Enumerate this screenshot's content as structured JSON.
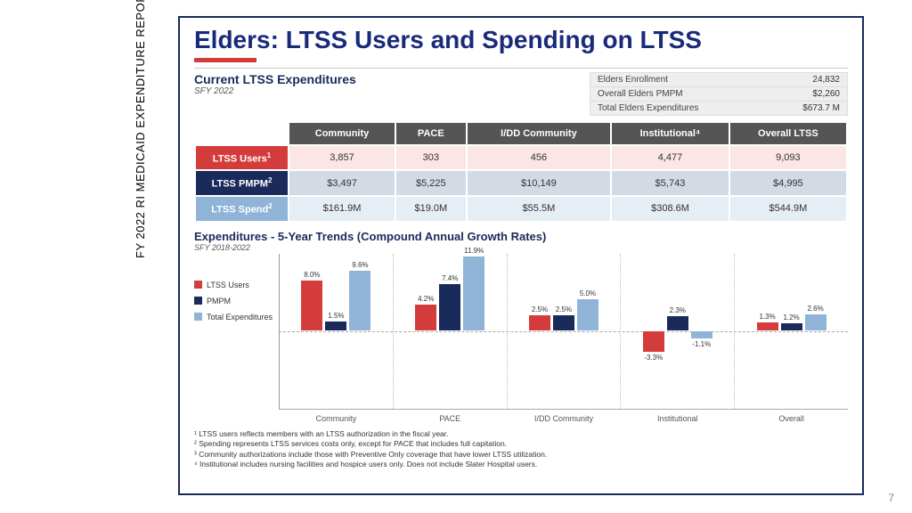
{
  "side_label": "FY 2022 RI MEDICAID EXPENDITURE REPORT",
  "page_number": "7",
  "title": "Elders: LTSS Users and Spending on LTSS",
  "expenditures": {
    "heading": "Current LTSS Expenditures",
    "sub": "SFY 2022",
    "stats": [
      {
        "label": "Elders Enrollment",
        "value": "24,832"
      },
      {
        "label": "Overall Elders PMPM",
        "value": "$2,260"
      },
      {
        "label": "Total Elders Expenditures",
        "value": "$673.7 M"
      }
    ]
  },
  "table": {
    "columns": [
      "Community",
      "PACE",
      "I/DD Community",
      "Institutional⁴",
      "Overall LTSS"
    ],
    "rows": [
      {
        "label": "LTSS Users",
        "sup": "1",
        "cls": "row-users",
        "cells": [
          "3,857",
          "303",
          "456",
          "4,477",
          "9,093"
        ]
      },
      {
        "label": "LTSS PMPM",
        "sup": "2",
        "cls": "row-pmpm",
        "cells": [
          "$3,497",
          "$5,225",
          "$10,149",
          "$5,743",
          "$4,995"
        ]
      },
      {
        "label": "LTSS Spend",
        "sup": "2",
        "cls": "row-spend",
        "cells": [
          "$161.9M",
          "$19.0M",
          "$55.5M",
          "$308.6M",
          "$544.9M"
        ]
      }
    ]
  },
  "trends": {
    "heading": "Expenditures - 5-Year Trends (Compound Annual Growth Rates)",
    "sub": "SFY 2018-2022",
    "colors": {
      "users": "#d43c3c",
      "pmpm": "#1a2a5a",
      "total": "#8fb4d8"
    },
    "legend": [
      {
        "key": "users",
        "label": "LTSS Users"
      },
      {
        "key": "pmpm",
        "label": "PMPM"
      },
      {
        "key": "total",
        "label": "Total Expenditures"
      }
    ],
    "scale_max": 12.5,
    "groups": [
      {
        "name": "Community",
        "bars": [
          {
            "k": "users",
            "v": 8.0,
            "lbl": "8.0%"
          },
          {
            "k": "pmpm",
            "v": 1.5,
            "lbl": "1.5%"
          },
          {
            "k": "total",
            "v": 9.6,
            "lbl": "9.6%"
          }
        ]
      },
      {
        "name": "PACE",
        "bars": [
          {
            "k": "users",
            "v": 4.2,
            "lbl": "4.2%"
          },
          {
            "k": "pmpm",
            "v": 7.4,
            "lbl": "7.4%"
          },
          {
            "k": "total",
            "v": 11.9,
            "lbl": "11.9%"
          }
        ]
      },
      {
        "name": "I/DD Community",
        "bars": [
          {
            "k": "users",
            "v": 2.5,
            "lbl": "2.5%"
          },
          {
            "k": "pmpm",
            "v": 2.5,
            "lbl": "2.5%"
          },
          {
            "k": "total",
            "v": 5.0,
            "lbl": "5.0%"
          }
        ]
      },
      {
        "name": "Institutional",
        "bars": [
          {
            "k": "users",
            "v": -3.3,
            "lbl": "-3.3%"
          },
          {
            "k": "pmpm",
            "v": 2.3,
            "lbl": "2.3%"
          },
          {
            "k": "total",
            "v": -1.1,
            "lbl": "-1.1%"
          }
        ]
      },
      {
        "name": "Overall",
        "bars": [
          {
            "k": "users",
            "v": 1.3,
            "lbl": "1.3%"
          },
          {
            "k": "pmpm",
            "v": 1.2,
            "lbl": "1.2%"
          },
          {
            "k": "total",
            "v": 2.6,
            "lbl": "2.6%"
          }
        ]
      }
    ]
  },
  "footnotes": [
    "¹ LTSS users reflects members with an LTSS authorization in the fiscal year.",
    "² Spending represents LTSS services costs only, except for PACE that includes full capitation.",
    "³ Community authorizations include those with Preventive Only coverage that have lower LTSS utilization.",
    "⁴ Institutional includes nursing facilities and hospice users only. Does not include Slater Hospital users."
  ]
}
